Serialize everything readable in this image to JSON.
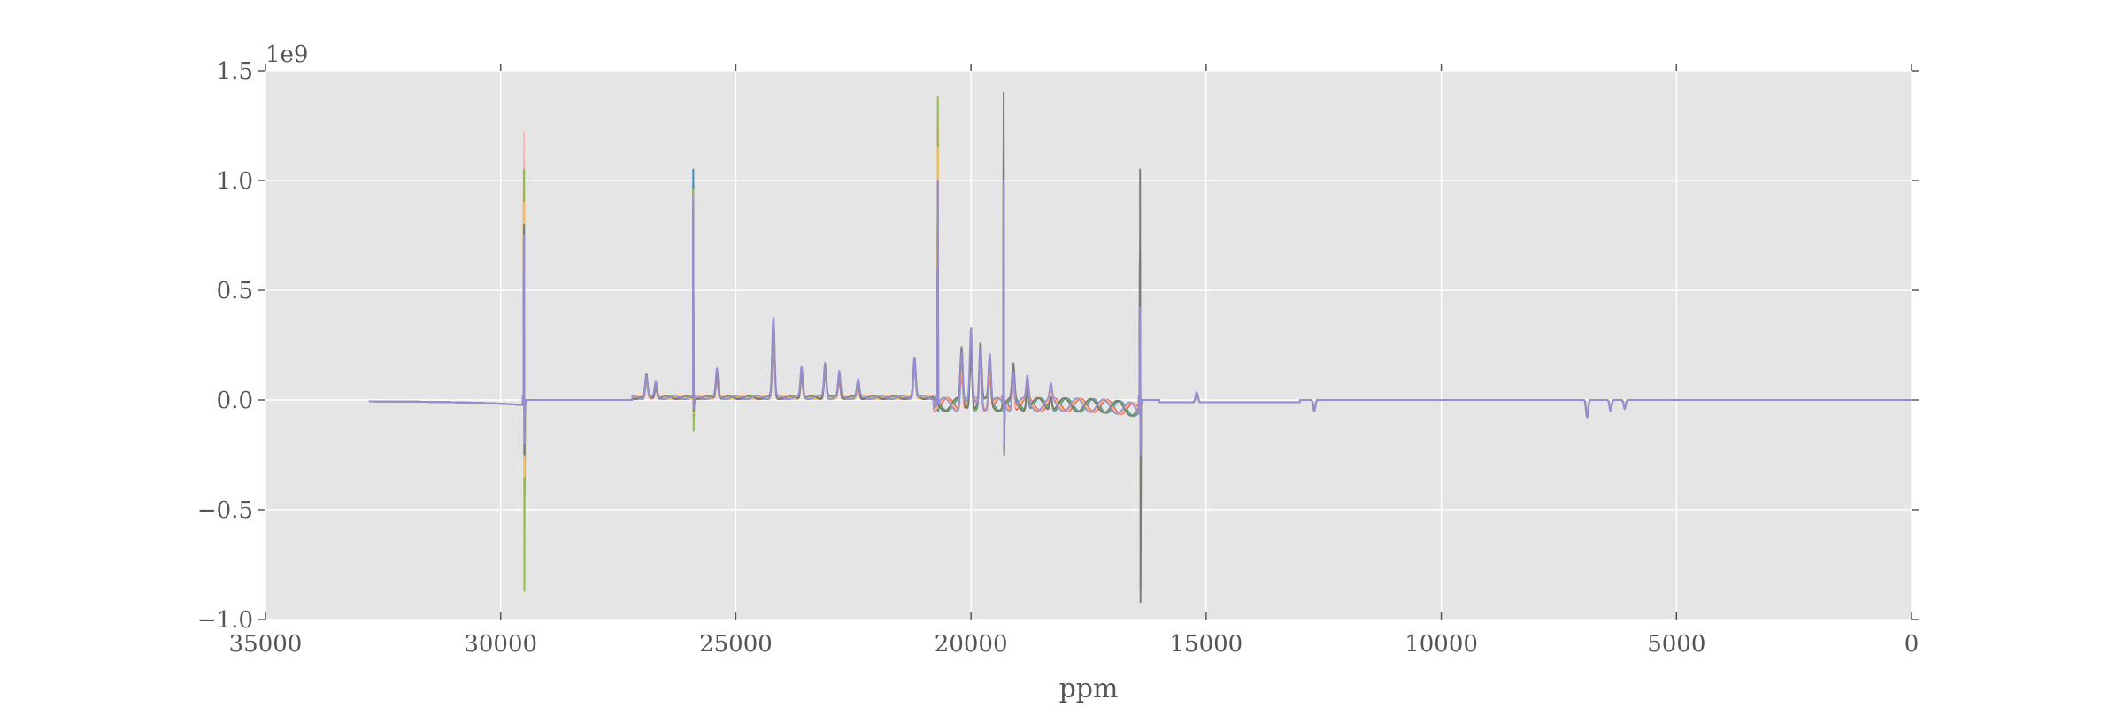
{
  "chart_data": {
    "type": "line",
    "title": "",
    "xlabel": "ppm",
    "ylabel": "",
    "y_offset_label": "1e9",
    "xlim": [
      35000,
      0
    ],
    "ylim": [
      -1.0,
      1.5
    ],
    "x_ticks": [
      35000,
      30000,
      25000,
      20000,
      15000,
      10000,
      5000,
      0
    ],
    "x_tick_labels": [
      "35000",
      "30000",
      "25000",
      "20000",
      "15000",
      "10000",
      "5000",
      "0"
    ],
    "y_ticks": [
      1.5,
      1.0,
      0.5,
      0.0,
      -0.5,
      -1.0
    ],
    "y_tick_labels": [
      "1.5",
      "1.0",
      "0.5",
      "0.0",
      "−0.5",
      "−1.0"
    ],
    "grid": true,
    "legend": "none",
    "background": "#e5e5e5",
    "x_extent": [
      32800,
      0
    ],
    "series": [
      {
        "color": "#e24a33",
        "peaks": [
          [
            29500,
            -0.42,
            1.1
          ],
          [
            25900,
            -0.05,
            0.98
          ],
          [
            20700,
            -0.02,
            1.25
          ],
          [
            19300,
            -0.2,
            1.1
          ],
          [
            16400,
            -0.4,
            0.47
          ]
        ]
      },
      {
        "color": "#348abd",
        "peaks": [
          [
            29500,
            -0.3,
            0.75
          ],
          [
            25900,
            -0.08,
            1.05
          ],
          [
            20700,
            -0.05,
            1.02
          ],
          [
            19300,
            -0.22,
            1.05
          ],
          [
            16400,
            -0.3,
            0.42
          ]
        ]
      },
      {
        "color": "#ffb5b8",
        "peaks": [
          [
            29500,
            -0.72,
            1.22
          ],
          [
            25900,
            -0.05,
            0.95
          ],
          [
            20700,
            -0.03,
            1.3
          ],
          [
            19300,
            -0.18,
            1.35
          ],
          [
            16400,
            -0.5,
            0.62
          ]
        ]
      },
      {
        "color": "#8eba42",
        "peaks": [
          [
            29500,
            -0.87,
            1.05
          ],
          [
            25900,
            -0.14,
            0.96
          ],
          [
            20700,
            -0.04,
            1.38
          ],
          [
            19300,
            -0.16,
            1.2
          ],
          [
            16400,
            -0.86,
            0.68
          ]
        ]
      },
      {
        "color": "#fbc15e",
        "peaks": [
          [
            29500,
            -0.35,
            0.9
          ],
          [
            25900,
            -0.06,
            0.92
          ],
          [
            20700,
            -0.02,
            1.15
          ],
          [
            19300,
            -0.15,
            1.0
          ],
          [
            16400,
            -0.35,
            0.55
          ]
        ]
      },
      {
        "color": "#777777",
        "peaks": [
          [
            29500,
            -0.25,
            0.8
          ],
          [
            25900,
            -0.05,
            0.9
          ],
          [
            20700,
            -0.02,
            1.0
          ],
          [
            19300,
            -0.25,
            1.4
          ],
          [
            16400,
            -0.92,
            1.05
          ]
        ]
      },
      {
        "color": "#988ed5",
        "peaks": [
          [
            29500,
            -0.2,
            0.75
          ],
          [
            25900,
            -0.04,
            0.93
          ],
          [
            20700,
            -0.02,
            1.0
          ],
          [
            19300,
            -0.2,
            1.0
          ],
          [
            16400,
            -0.25,
            0.42
          ]
        ]
      }
    ]
  }
}
